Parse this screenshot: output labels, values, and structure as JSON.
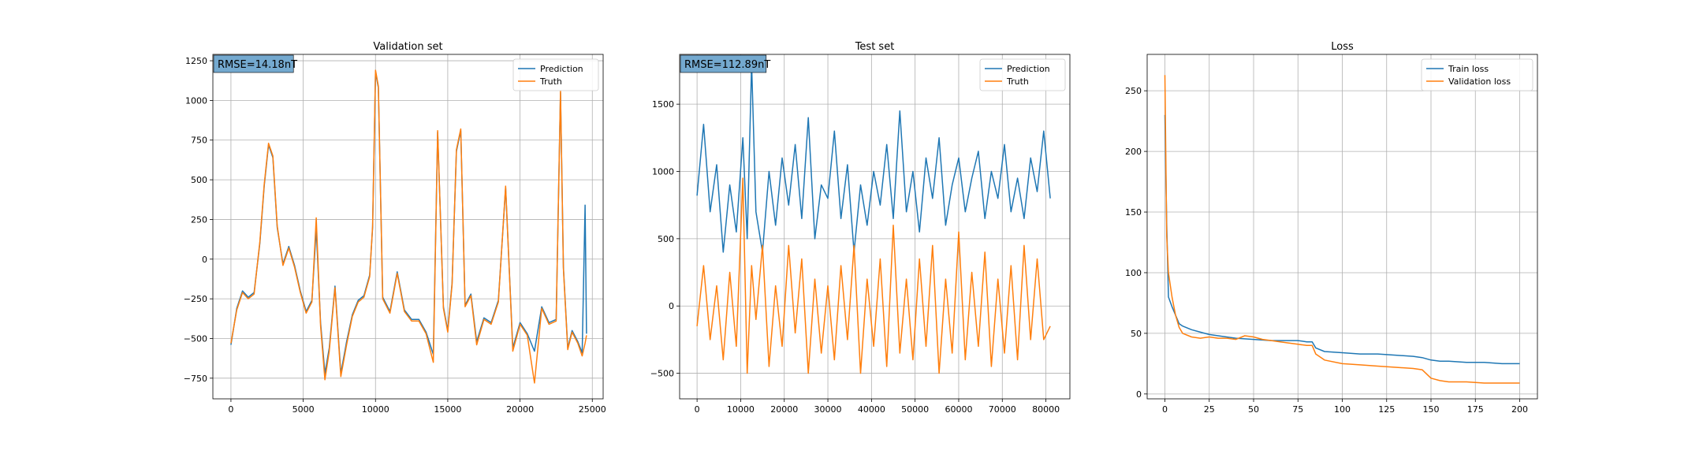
{
  "colors": {
    "prediction": "#1f77b4",
    "truth": "#ff7f0e",
    "grid": "#b0b0b0",
    "rmse_box": "#74a9cf"
  },
  "chart_data": [
    {
      "type": "line",
      "title": "Validation set",
      "annotation": "RMSE=14.18nT",
      "legend_position": "upper right",
      "grid": true,
      "xlim": [
        -1250,
        25750
      ],
      "ylim": [
        -880,
        1290
      ],
      "xticks": [
        0,
        5000,
        10000,
        15000,
        20000,
        25000
      ],
      "yticks": [
        -750,
        -500,
        -250,
        0,
        250,
        500,
        750,
        1000,
        1250
      ],
      "series": [
        {
          "name": "Prediction",
          "color": "#1f77b4",
          "x": [
            0,
            400,
            800,
            1200,
            1600,
            2000,
            2300,
            2600,
            2900,
            3200,
            3600,
            4000,
            4400,
            4800,
            5200,
            5600,
            5900,
            6200,
            6500,
            6800,
            7200,
            7600,
            8000,
            8400,
            8800,
            9200,
            9600,
            9800,
            10000,
            10200,
            10500,
            11000,
            11500,
            12000,
            12500,
            13000,
            13500,
            14000,
            14300,
            14700,
            15000,
            15300,
            15600,
            15900,
            16200,
            16600,
            17000,
            17500,
            18000,
            18500,
            19000,
            19500,
            20000,
            20500,
            21000,
            21500,
            22000,
            22500,
            22800,
            23000,
            23300,
            23600,
            24000,
            24300,
            24500,
            24600
          ],
          "y": [
            -540,
            -310,
            -200,
            -240,
            -210,
            100,
            460,
            720,
            640,
            200,
            -30,
            80,
            -40,
            -200,
            -330,
            -260,
            190,
            -400,
            -720,
            -560,
            -170,
            -720,
            -520,
            -350,
            -260,
            -230,
            -100,
            200,
            1180,
            1080,
            -240,
            -330,
            -80,
            -320,
            -380,
            -380,
            -460,
            -600,
            800,
            -300,
            -450,
            -150,
            680,
            810,
            -290,
            -220,
            -520,
            -370,
            -400,
            -260,
            450,
            -560,
            -400,
            -470,
            -580,
            -300,
            -400,
            -380,
            1050,
            -50,
            -560,
            -450,
            -520,
            -590,
            340,
            -470
          ]
        },
        {
          "name": "Truth",
          "color": "#ff7f0e",
          "x": [
            0,
            400,
            800,
            1200,
            1600,
            2000,
            2300,
            2600,
            2900,
            3200,
            3600,
            4000,
            4400,
            4800,
            5200,
            5600,
            5900,
            6200,
            6500,
            6800,
            7200,
            7600,
            8000,
            8400,
            8800,
            9200,
            9600,
            9800,
            10000,
            10200,
            10500,
            11000,
            11500,
            12000,
            12500,
            13000,
            13500,
            14000,
            14300,
            14700,
            15000,
            15300,
            15600,
            15900,
            16200,
            16600,
            17000,
            17500,
            18000,
            18500,
            19000,
            19500,
            20000,
            20500,
            21000,
            21500,
            22000,
            22500,
            22800,
            23000,
            23300,
            23600,
            24000,
            24300,
            24500,
            24600
          ],
          "y": [
            -530,
            -320,
            -210,
            -250,
            -220,
            110,
            470,
            730,
            650,
            210,
            -40,
            70,
            -50,
            -210,
            -340,
            -270,
            260,
            -420,
            -760,
            -580,
            -180,
            -740,
            -540,
            -360,
            -270,
            -240,
            -110,
            210,
            1190,
            1090,
            -250,
            -340,
            -90,
            -330,
            -390,
            -390,
            -470,
            -650,
            810,
            -310,
            -460,
            -160,
            690,
            820,
            -300,
            -230,
            -540,
            -380,
            -410,
            -270,
            460,
            -580,
            -410,
            -480,
            -780,
            -310,
            -410,
            -390,
            1060,
            -60,
            -570,
            -460,
            -530,
            -610,
            -530,
            -480
          ]
        }
      ]
    },
    {
      "type": "line",
      "title": "Test set",
      "annotation": "RMSE=112.89nT",
      "legend_position": "upper right",
      "grid": true,
      "xlim": [
        -4000,
        85500
      ],
      "ylim": [
        -690,
        1870
      ],
      "xticks": [
        0,
        10000,
        20000,
        30000,
        40000,
        50000,
        60000,
        70000,
        80000
      ],
      "yticks": [
        -500,
        0,
        500,
        1000,
        1500
      ],
      "series": [
        {
          "name": "Prediction",
          "color": "#1f77b4",
          "x": [
            0,
            1500,
            3000,
            4500,
            6000,
            7500,
            9000,
            10500,
            11500,
            12500,
            13500,
            15000,
            16500,
            18000,
            19500,
            21000,
            22500,
            24000,
            25500,
            27000,
            28500,
            30000,
            31500,
            33000,
            34500,
            36000,
            37500,
            39000,
            40500,
            42000,
            43500,
            45000,
            46500,
            48000,
            49500,
            51000,
            52500,
            54000,
            55500,
            57000,
            58500,
            60000,
            61500,
            63000,
            64500,
            66000,
            67500,
            69000,
            70500,
            72000,
            73500,
            75000,
            76500,
            78000,
            79500,
            81000
          ],
          "y": [
            820,
            1350,
            700,
            1050,
            400,
            900,
            550,
            1250,
            500,
            1800,
            700,
            400,
            1000,
            600,
            1100,
            750,
            1200,
            650,
            1400,
            500,
            900,
            800,
            1300,
            650,
            1050,
            400,
            900,
            600,
            1000,
            750,
            1200,
            650,
            1450,
            700,
            1000,
            550,
            1100,
            800,
            1250,
            600,
            900,
            1100,
            700,
            950,
            1150,
            650,
            1000,
            800,
            1200,
            700,
            950,
            650,
            1100,
            850,
            1300,
            800
          ]
        },
        {
          "name": "Truth",
          "color": "#ff7f0e",
          "x": [
            0,
            1500,
            3000,
            4500,
            6000,
            7500,
            9000,
            10500,
            11500,
            12500,
            13500,
            15000,
            16500,
            18000,
            19500,
            21000,
            22500,
            24000,
            25500,
            27000,
            28500,
            30000,
            31500,
            33000,
            34500,
            36000,
            37500,
            39000,
            40500,
            42000,
            43500,
            45000,
            46500,
            48000,
            49500,
            51000,
            52500,
            54000,
            55500,
            57000,
            58500,
            60000,
            61500,
            63000,
            64500,
            66000,
            67500,
            69000,
            70500,
            72000,
            73500,
            75000,
            76500,
            78000,
            79500,
            81000
          ],
          "y": [
            -150,
            300,
            -250,
            150,
            -400,
            250,
            -300,
            950,
            -500,
            300,
            -100,
            450,
            -450,
            150,
            -300,
            450,
            -200,
            350,
            -500,
            200,
            -350,
            150,
            -400,
            300,
            -250,
            450,
            -500,
            200,
            -300,
            350,
            -450,
            600,
            -350,
            200,
            -400,
            350,
            -300,
            450,
            -500,
            200,
            -350,
            550,
            -400,
            250,
            -300,
            400,
            -450,
            200,
            -350,
            300,
            -400,
            450,
            -250,
            350,
            -250,
            -150
          ]
        }
      ]
    },
    {
      "type": "line",
      "title": "Loss",
      "legend_position": "upper right",
      "grid": true,
      "xlim": [
        -10,
        210
      ],
      "ylim": [
        -4,
        280
      ],
      "xticks": [
        0,
        25,
        50,
        75,
        100,
        125,
        150,
        175,
        200
      ],
      "yticks": [
        0,
        50,
        100,
        150,
        200,
        250
      ],
      "series": [
        {
          "name": "Train loss",
          "color": "#1f77b4",
          "x": [
            0,
            1,
            2,
            4,
            6,
            8,
            10,
            15,
            20,
            25,
            30,
            40,
            50,
            60,
            70,
            75,
            80,
            83,
            85,
            90,
            100,
            110,
            120,
            130,
            140,
            145,
            150,
            155,
            160,
            170,
            180,
            190,
            200
          ],
          "y": [
            230,
            140,
            80,
            72,
            65,
            58,
            56,
            53,
            51,
            49,
            48,
            46,
            45,
            44,
            44,
            44,
            43,
            43,
            38,
            35,
            34,
            33,
            33,
            32,
            31,
            30,
            28,
            27,
            27,
            26,
            26,
            25,
            25
          ]
        },
        {
          "name": "Validation loss",
          "color": "#ff7f0e",
          "x": [
            0,
            1,
            2,
            4,
            6,
            8,
            10,
            15,
            20,
            25,
            30,
            35,
            40,
            45,
            50,
            55,
            60,
            65,
            70,
            75,
            80,
            83,
            85,
            90,
            100,
            110,
            120,
            130,
            140,
            145,
            150,
            155,
            160,
            170,
            180,
            190,
            200
          ],
          "y": [
            263,
            130,
            100,
            80,
            65,
            55,
            50,
            47,
            46,
            47,
            46,
            46,
            45,
            48,
            47,
            45,
            44,
            43,
            42,
            41,
            40,
            40,
            33,
            28,
            25,
            24,
            23,
            22,
            21,
            20,
            13,
            11,
            10,
            10,
            9,
            9,
            9
          ]
        }
      ]
    }
  ]
}
